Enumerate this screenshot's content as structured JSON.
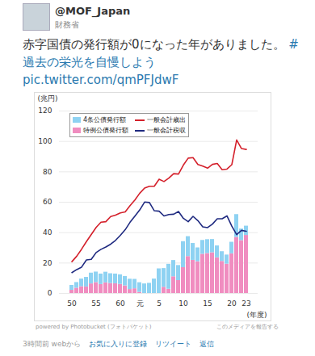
{
  "tweet": {
    "handle": "@MOF_Japan",
    "display_name": "財務省",
    "text": "赤字国債の発行額が0になった年がありました。",
    "hashtag": "#過去の栄光を自慢しよう",
    "link": "pic.twitter.com/qmPFJdwF",
    "powered_by": "powered by",
    "service": "Photobucket (フォトバケット)",
    "report": "このメディアを報告する",
    "time": "3時間前 webから",
    "actions": [
      "お気に入りに登録",
      "リツイート",
      "返信"
    ]
  },
  "chart_data": {
    "type": "bar",
    "stacked": true,
    "grid": true,
    "y_label": "(兆円)",
    "x_label": "(年度)",
    "categories": [
      "50",
      null,
      null,
      null,
      null,
      "55",
      null,
      null,
      null,
      null,
      "60",
      null,
      null,
      null,
      "元",
      null,
      null,
      null,
      "5",
      null,
      null,
      null,
      null,
      "10",
      null,
      null,
      null,
      null,
      "15",
      null,
      null,
      null,
      null,
      "20",
      null,
      null,
      "23"
    ],
    "ylim": [
      0,
      120
    ],
    "yticks": [
      0,
      20,
      40,
      60,
      80,
      100,
      120
    ],
    "series": [
      {
        "name": "4条公債発行額",
        "type": "bar",
        "color": "#8ed2f2",
        "values": [
          3.2,
          3.7,
          5.0,
          6.3,
          7.1,
          6.9,
          6.9,
          7.0,
          6.4,
          6.4,
          6.3,
          6.2,
          6.8,
          6.2,
          6.4,
          6.3,
          6.7,
          9.5,
          16.2,
          12.3,
          16.4,
          10.7,
          9.9,
          17.1,
          13.1,
          11.1,
          9.1,
          9.1,
          9.1,
          8.7,
          7.8,
          6.4,
          6.0,
          7.6,
          15.0,
          7.6,
          6.1
        ]
      },
      {
        "name": "特例公債発行額",
        "type": "bar",
        "color": "#f08dc0",
        "values": [
          2.1,
          3.5,
          4.5,
          4.3,
          6.3,
          7.2,
          5.9,
          7.0,
          6.6,
          6.4,
          6.0,
          5.0,
          2.6,
          3.1,
          0.7,
          0,
          0,
          0,
          0,
          4.1,
          2.8,
          11.0,
          8.5,
          17.0,
          24.3,
          21.8,
          20.9,
          25.8,
          26.3,
          26.8,
          23.5,
          21.1,
          19.3,
          26.1,
          36.9,
          34.8,
          38.2
        ]
      },
      {
        "name": "一般会計歳出",
        "type": "line",
        "color": "#d4202b",
        "values": [
          20.9,
          24.5,
          29.1,
          34.1,
          38.8,
          43.4,
          46.9,
          47.2,
          50.6,
          51.5,
          53.0,
          53.6,
          57.7,
          61.5,
          65.9,
          69.3,
          70.5,
          70.5,
          75.1,
          73.6,
          75.9,
          78.8,
          78.5,
          84.4,
          89.0,
          89.3,
          84.8,
          83.7,
          82.4,
          84.9,
          85.5,
          81.4,
          81.8,
          84.7,
          101.0,
          95.3,
          94.7
        ]
      },
      {
        "name": "一般会計税収",
        "type": "line",
        "color": "#1f2a80",
        "values": [
          13.7,
          15.7,
          17.3,
          22.0,
          22.4,
          26.9,
          29.0,
          30.5,
          32.4,
          34.9,
          38.2,
          41.9,
          46.8,
          50.8,
          54.9,
          60.1,
          59.8,
          54.4,
          54.1,
          51.0,
          51.9,
          52.1,
          53.9,
          49.4,
          47.2,
          50.7,
          47.9,
          43.8,
          43.3,
          45.6,
          49.1,
          49.1,
          51.0,
          44.3,
          38.7,
          41.5,
          40.9
        ]
      }
    ]
  }
}
